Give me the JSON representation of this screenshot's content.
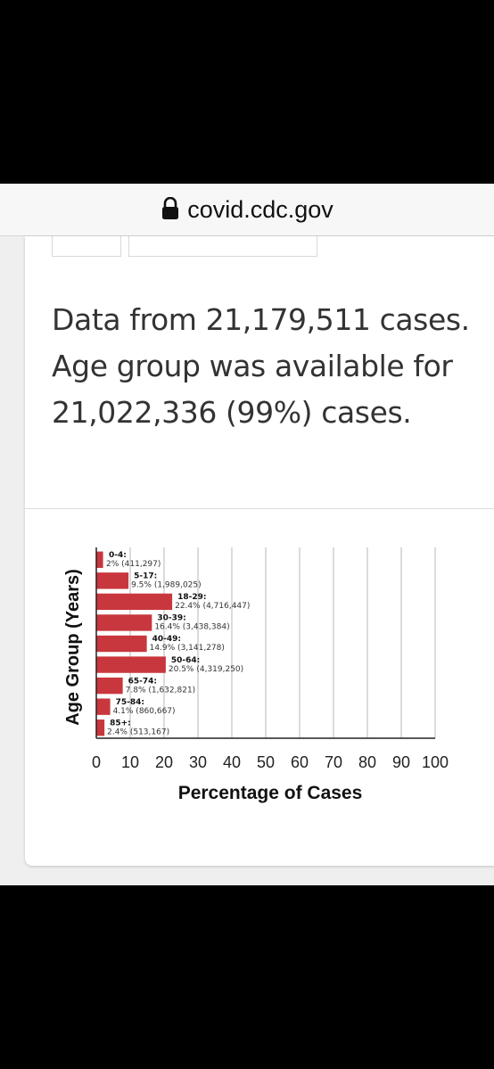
{
  "browser": {
    "url": "covid.cdc.gov"
  },
  "summary": {
    "text": "Data from 21,179,511 cases. Age group was available for 21,022,336 (99%) cases."
  },
  "chart_data": {
    "type": "bar",
    "orientation": "horizontal",
    "categories": [
      "0-4:",
      "5-17:",
      "18-29:",
      "30-39:",
      "40-49:",
      "50-64:",
      "65-74:",
      "75-84:",
      "85+:"
    ],
    "values": [
      2,
      9.5,
      22.4,
      16.4,
      14.9,
      20.5,
      7.8,
      4.1,
      2.4
    ],
    "data_labels": [
      "2% (411,297)",
      "9.5% (1,989,025)",
      "22.4% (4,716,447)",
      "16.4% (3,438,384)",
      "14.9% (3,141,278)",
      "20.5% (4,319,250)",
      "7.8% (1,632,821)",
      "4.1% (860,667)",
      "2.4% (513,167)"
    ],
    "xlabel": "Percentage of Cases",
    "ylabel": "Age Group (Years)",
    "xlim": [
      0,
      100
    ],
    "xticks": [
      "0",
      "10",
      "20",
      "30",
      "40",
      "50",
      "60",
      "70",
      "80",
      "90",
      "100"
    ],
    "grid": true,
    "bar_color": "#c8373d"
  }
}
